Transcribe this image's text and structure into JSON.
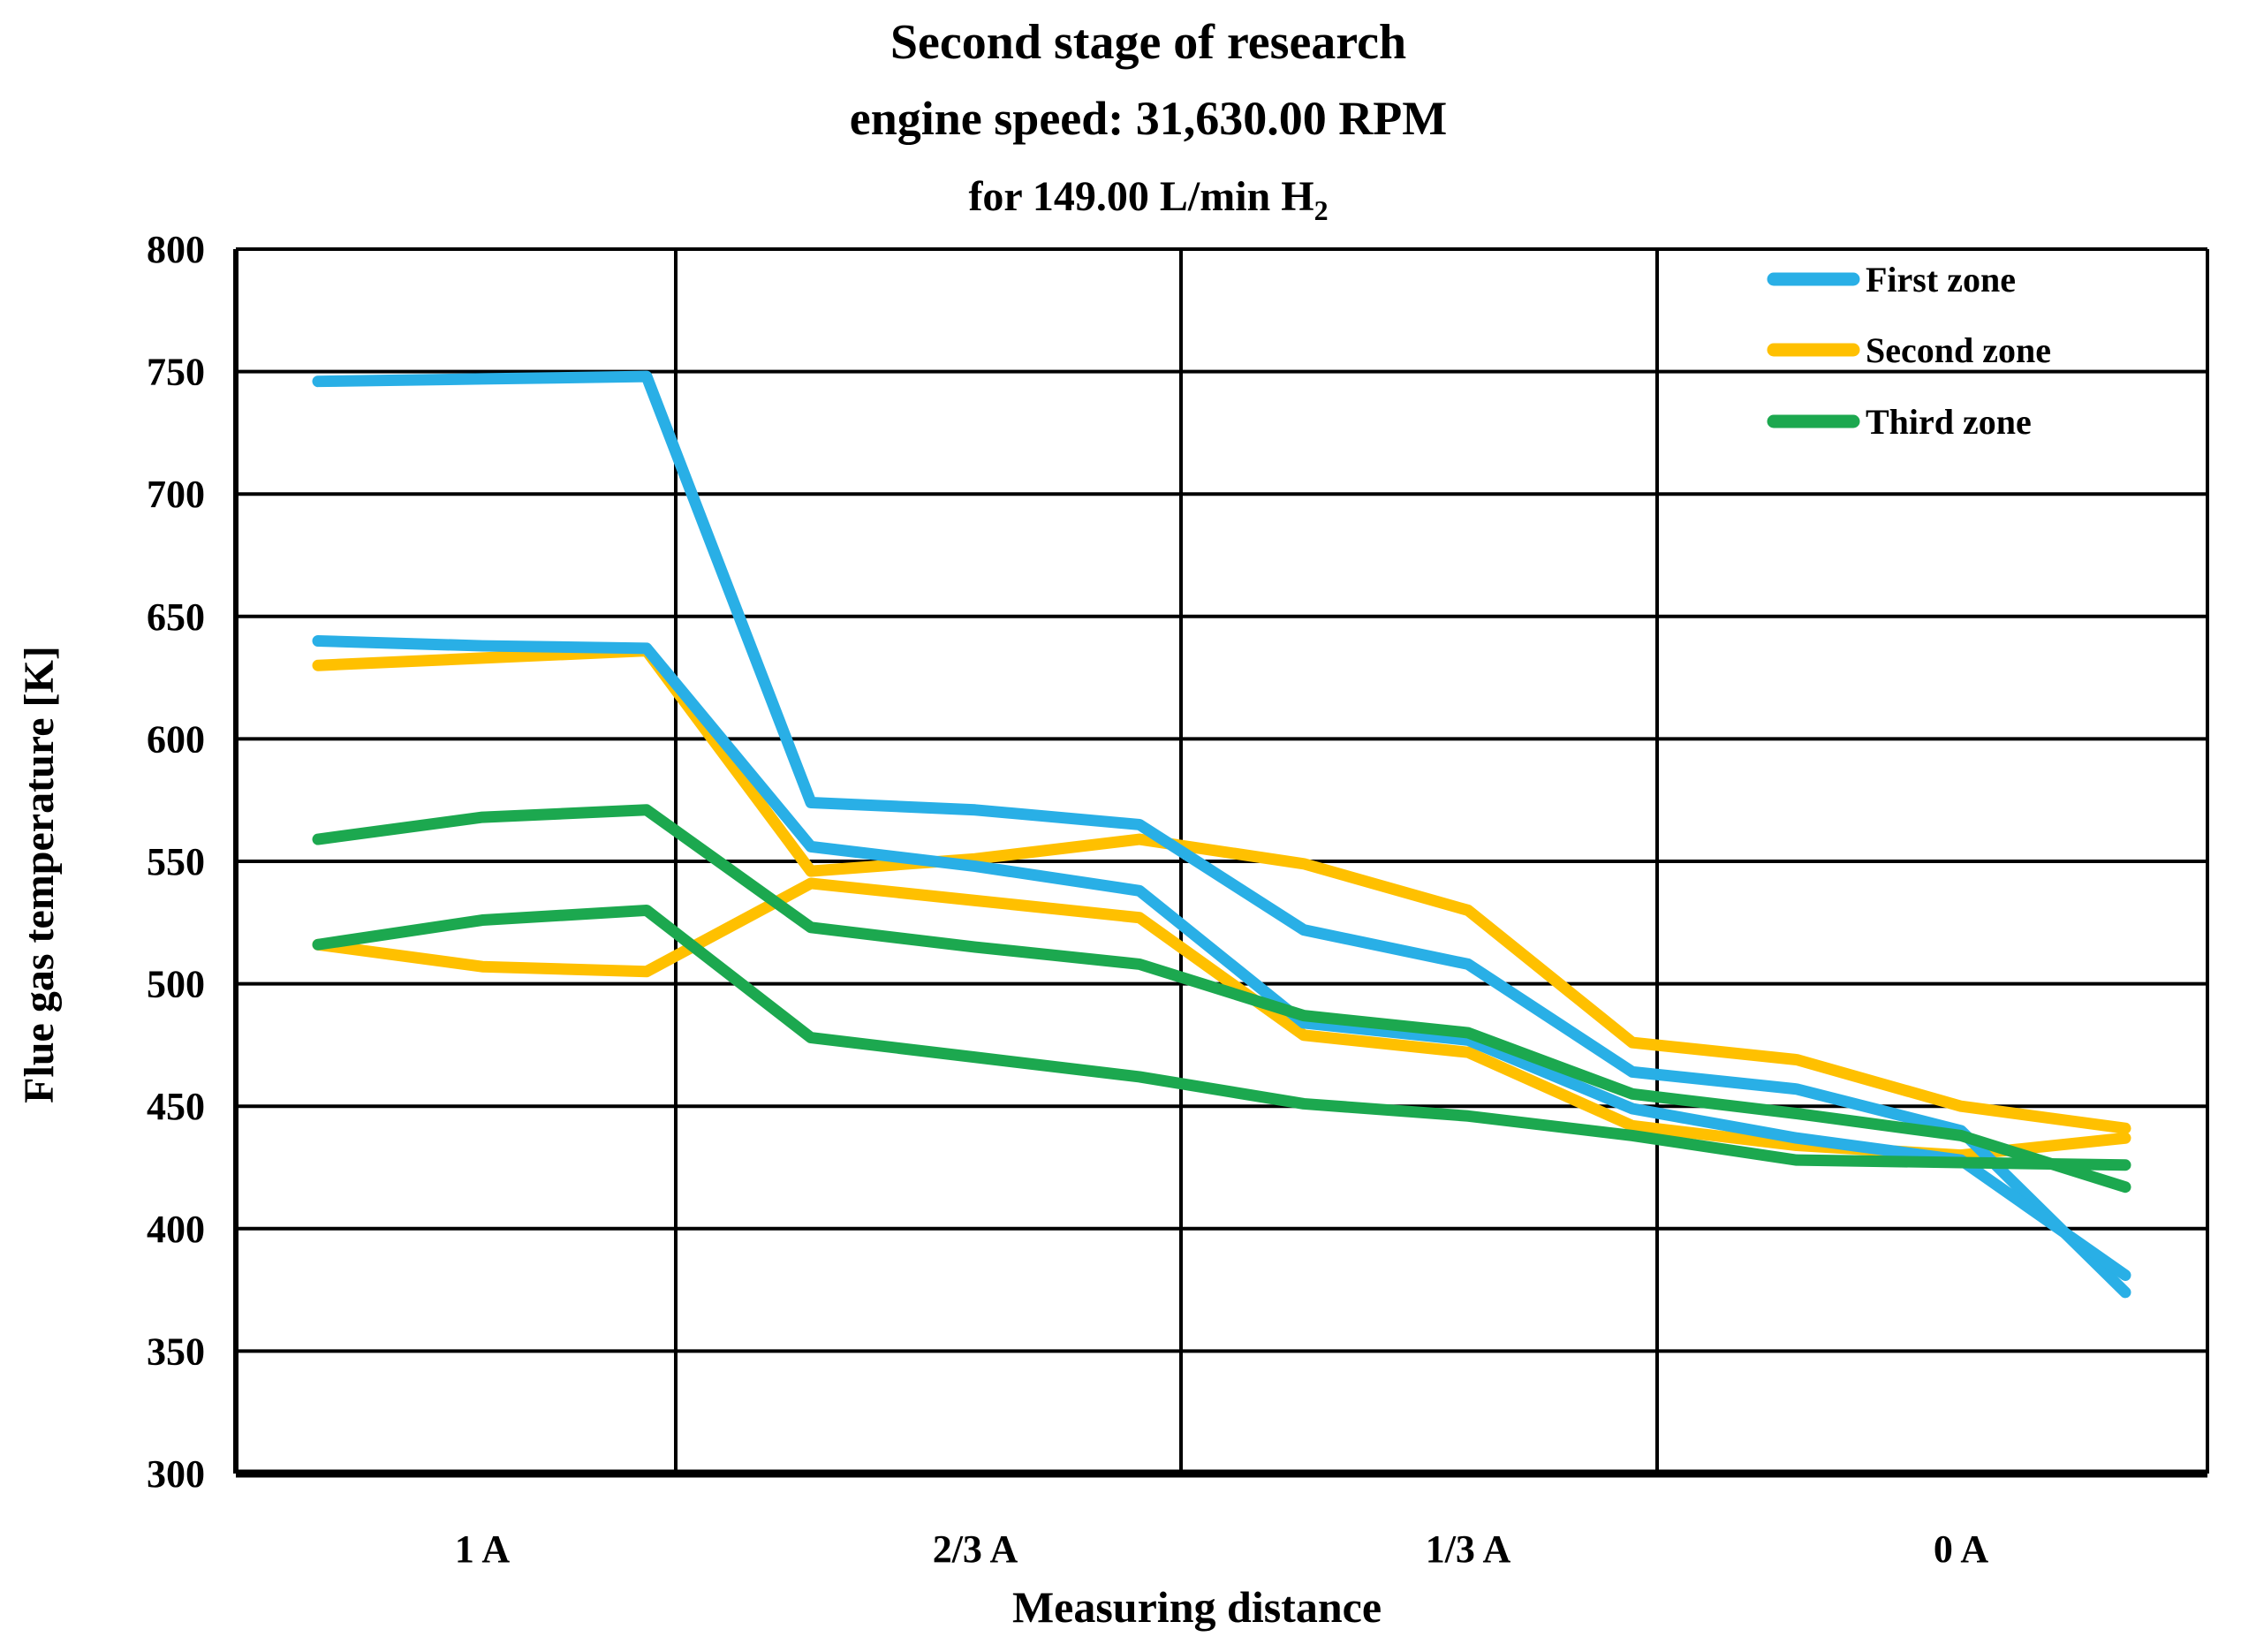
{
  "chart_data": {
    "type": "line",
    "title_line1": "Second stage of research",
    "title_line2": "engine speed: 31,630.00 RPM",
    "title_line3_prefix": "for 149.00 L/min H",
    "title_line3_subscript": "2",
    "xlabel": "Measuring distance",
    "ylabel": "Flue gas temperature [K]",
    "ylim": [
      300,
      800
    ],
    "ytick_step": 50,
    "ytick_labels": [
      "800",
      "750",
      "700",
      "650",
      "600",
      "550",
      "500",
      "450",
      "400",
      "350",
      "300"
    ],
    "x_group_labels": [
      "1 A",
      "2/3 A",
      "1/3 A",
      "0 A"
    ],
    "points_per_group": 3,
    "grid": "both",
    "colors": {
      "first_zone": "#29AFE6",
      "second_zone": "#FFC000",
      "third_zone": "#1CA84F"
    },
    "legend": {
      "position": "top-right-inside",
      "entries": [
        {
          "label": "First zone",
          "color": "#29AFE6"
        },
        {
          "label": "Second zone",
          "color": "#FFC000"
        },
        {
          "label": "Third zone",
          "color": "#1CA84F"
        }
      ]
    },
    "series": [
      {
        "zone": "Second zone",
        "run": 1,
        "color": "#FFC000",
        "values": [
          630,
          633,
          636,
          546,
          551,
          559,
          549,
          530,
          476,
          469,
          450,
          441
        ]
      },
      {
        "zone": "Second zone",
        "run": 2,
        "color": "#FFC000",
        "values": [
          516,
          507,
          505,
          541,
          534,
          527,
          479,
          472,
          442,
          434,
          430,
          437
        ]
      },
      {
        "zone": "First zone",
        "run": 1,
        "color": "#29AFE6",
        "values": [
          746,
          747,
          748,
          574,
          571,
          565,
          522,
          508,
          464,
          457,
          440,
          374
        ]
      },
      {
        "zone": "First zone",
        "run": 2,
        "color": "#29AFE6",
        "values": [
          640,
          638,
          637,
          556,
          548,
          538,
          484,
          477,
          449,
          437,
          428,
          381
        ]
      },
      {
        "zone": "Third zone",
        "run": 1,
        "color": "#1CA84F",
        "values": [
          559,
          568,
          571,
          523,
          515,
          508,
          487,
          480,
          455,
          447,
          438,
          417
        ]
      },
      {
        "zone": "Third zone",
        "run": 2,
        "color": "#1CA84F",
        "values": [
          516,
          526,
          530,
          478,
          470,
          462,
          451,
          446,
          438,
          428,
          427,
          426
        ]
      }
    ]
  }
}
